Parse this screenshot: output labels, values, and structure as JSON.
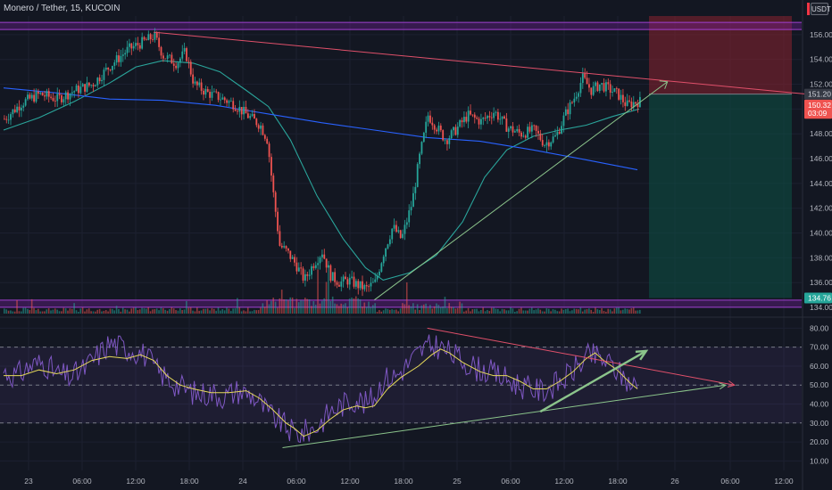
{
  "header": {
    "symbol": "Monero / Tether, 15, KUCOIN",
    "currency": "USDT"
  },
  "colors": {
    "background": "#131722",
    "up": "#26a69a",
    "down": "#ef5350",
    "volume_band": "#7b1fa2",
    "rsi": "#7e57c2",
    "rsi_ma": "#e6d95a",
    "resistance": "#e0506a",
    "support": "#8bc48b",
    "short_stop": "#8b2230",
    "short_target": "#0e4c43"
  },
  "chart_data": [
    {
      "type": "candlestick",
      "panel": "price",
      "y_axis_ticks": [
        "156.00",
        "154.00",
        "152.00",
        "150.00",
        "148.00",
        "146.00",
        "144.00",
        "142.00",
        "140.00",
        "138.00",
        "136.00",
        "134.00"
      ],
      "ylim": [
        133.5,
        157.5
      ],
      "price_labels": [
        {
          "text": "151.20",
          "value": 151.2,
          "style": "dark"
        },
        {
          "text": "150.32",
          "value": 150.32,
          "style": "red"
        },
        {
          "text": "03:09",
          "value": 149.65,
          "style": "red"
        },
        {
          "text": "134.76",
          "value": 134.76,
          "style": "green"
        }
      ],
      "x_axis_ticks": [
        "23",
        "06:00",
        "12:00",
        "18:00",
        "24",
        "06:00",
        "12:00",
        "18:00",
        "25",
        "06:00",
        "12:00",
        "18:00",
        "26",
        "06:00",
        "12:00"
      ],
      "trend_lines": [
        {
          "name": "resistance",
          "from": {
            "bar": 170,
            "price": 156.2
          },
          "to": {
            "bar": 910,
            "price": 151.2
          }
        },
        {
          "name": "support",
          "from": {
            "bar": 420,
            "price": 134.6
          },
          "to": {
            "bar": 752,
            "price": 152.2
          }
        }
      ],
      "moving_averages": [
        {
          "color": "#2aa59b",
          "points": [
            [
              0,
              148.3
            ],
            [
              40,
              149.3
            ],
            [
              80,
              150.6
            ],
            [
              120,
              152.1
            ],
            [
              150,
              153.4
            ],
            [
              180,
              153.9
            ],
            [
              215,
              153.7
            ],
            [
              245,
              153.0
            ],
            [
              275,
              151.5
            ],
            [
              300,
              150.2
            ],
            [
              325,
              147.5
            ],
            [
              355,
              143.0
            ],
            [
              385,
              139.5
            ],
            [
              410,
              137.2
            ],
            [
              430,
              136.2
            ],
            [
              460,
              136.8
            ],
            [
              490,
              138.2
            ],
            [
              520,
              140.9
            ],
            [
              545,
              144.5
            ],
            [
              570,
              146.7
            ],
            [
              600,
              147.8
            ],
            [
              630,
              148.3
            ],
            [
              660,
              148.7
            ],
            [
              690,
              149.4
            ],
            [
              720,
              150.0
            ]
          ]
        },
        {
          "color": "#2962ff",
          "points": [
            [
              0,
              151.7
            ],
            [
              60,
              151.3
            ],
            [
              120,
              150.8
            ],
            [
              180,
              150.7
            ],
            [
              240,
              150.3
            ],
            [
              300,
              149.6
            ],
            [
              360,
              148.9
            ],
            [
              420,
              148.3
            ],
            [
              480,
              147.7
            ],
            [
              540,
              147.4
            ],
            [
              600,
              146.7
            ],
            [
              660,
              145.9
            ],
            [
              718,
              145.1
            ]
          ]
        }
      ],
      "position": {
        "kind": "short",
        "entry": 151.2,
        "stop": 157.5,
        "target": 134.76
      }
    },
    {
      "type": "line",
      "panel": "rsi",
      "y_axis_ticks": [
        "80.00",
        "70.00",
        "60.00",
        "50.00",
        "40.00",
        "30.00",
        "20.00",
        "10.00"
      ],
      "ylim": [
        5,
        83
      ],
      "bands": [
        30,
        50,
        70
      ],
      "series": [
        {
          "points": [
            [
              0,
              57
            ],
            [
              15,
              55
            ],
            [
              30,
              60
            ],
            [
              45,
              62
            ],
            [
              60,
              56
            ],
            [
              75,
              54
            ],
            [
              90,
              58
            ],
            [
              105,
              65
            ],
            [
              120,
              72
            ],
            [
              135,
              70
            ],
            [
              150,
              68
            ],
            [
              160,
              66
            ],
            [
              175,
              57
            ],
            [
              190,
              52
            ],
            [
              205,
              48
            ],
            [
              220,
              45
            ],
            [
              235,
              46
            ],
            [
              250,
              44
            ],
            [
              265,
              47
            ],
            [
              280,
              45
            ],
            [
              290,
              41
            ],
            [
              300,
              35
            ],
            [
              315,
              30
            ],
            [
              330,
              24
            ],
            [
              340,
              25
            ],
            [
              355,
              28
            ],
            [
              370,
              36
            ],
            [
              385,
              40
            ],
            [
              400,
              43
            ],
            [
              410,
              40
            ],
            [
              420,
              44
            ],
            [
              430,
              53
            ],
            [
              445,
              55
            ],
            [
              460,
              62
            ],
            [
              475,
              69
            ],
            [
              490,
              71
            ],
            [
              505,
              67
            ],
            [
              520,
              63
            ],
            [
              535,
              59
            ],
            [
              550,
              57
            ],
            [
              565,
              54
            ],
            [
              580,
              51
            ],
            [
              595,
              48
            ],
            [
              610,
              47
            ],
            [
              620,
              49
            ],
            [
              635,
              53
            ],
            [
              650,
              60
            ],
            [
              665,
              66
            ],
            [
              680,
              63
            ],
            [
              690,
              60
            ],
            [
              700,
              55
            ],
            [
              710,
              51
            ],
            [
              718,
              49
            ]
          ]
        },
        {
          "points": [
            [
              0,
              55
            ],
            [
              20,
              55
            ],
            [
              40,
              58
            ],
            [
              60,
              56
            ],
            [
              80,
              58
            ],
            [
              100,
              63
            ],
            [
              120,
              65
            ],
            [
              140,
              64
            ],
            [
              155,
              66
            ],
            [
              170,
              63
            ],
            [
              185,
              55
            ],
            [
              200,
              50
            ],
            [
              215,
              48
            ],
            [
              235,
              46
            ],
            [
              255,
              46
            ],
            [
              275,
              47
            ],
            [
              290,
              43
            ],
            [
              305,
              37
            ],
            [
              320,
              30
            ],
            [
              330,
              27
            ],
            [
              340,
              23
            ],
            [
              355,
              26
            ],
            [
              370,
              32
            ],
            [
              385,
              37
            ],
            [
              400,
              39
            ],
            [
              410,
              38
            ],
            [
              420,
              39
            ],
            [
              435,
              48
            ],
            [
              450,
              54
            ],
            [
              470,
              60
            ],
            [
              485,
              66
            ],
            [
              495,
              69
            ],
            [
              505,
              67
            ],
            [
              520,
              62
            ],
            [
              540,
              57
            ],
            [
              555,
              55
            ],
            [
              570,
              55
            ],
            [
              585,
              52
            ],
            [
              600,
              48
            ],
            [
              615,
              48
            ],
            [
              630,
              52
            ],
            [
              645,
              57
            ],
            [
              660,
              64
            ],
            [
              670,
              67
            ],
            [
              680,
              63
            ],
            [
              695,
              58
            ],
            [
              710,
              51
            ],
            [
              718,
              48
            ]
          ]
        }
      ],
      "trend_lines": [
        {
          "name": "resistance",
          "from": {
            "bar": 480,
            "value": 80
          },
          "to": {
            "bar": 828,
            "value": 50
          }
        },
        {
          "name": "support",
          "from": {
            "bar": 316,
            "value": 17
          },
          "to": {
            "bar": 818,
            "value": 50
          }
        },
        {
          "name": "arrow",
          "from": {
            "bar": 608,
            "value": 36
          },
          "to": {
            "bar": 728,
            "value": 68
          }
        }
      ]
    }
  ]
}
